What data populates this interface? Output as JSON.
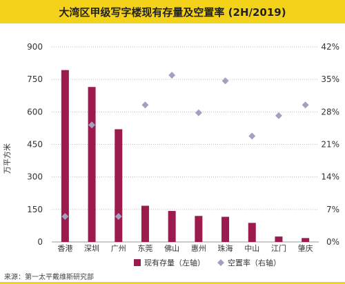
{
  "title": "大湾区甲级写字楼现有存量及空置率 (2H/2019)",
  "source": "来源：第一太平戴维斯研究部",
  "chart_data": {
    "type": "bar",
    "categories": [
      "香港",
      "深圳",
      "广州",
      "东莞",
      "佛山",
      "惠州",
      "珠海",
      "中山",
      "江门",
      "肇庆"
    ],
    "series": [
      {
        "name": "现有存量（左轴）",
        "axis": "left",
        "mark": "bar",
        "color": "#9b1b4e",
        "values": [
          793,
          715,
          520,
          167,
          143,
          120,
          116,
          88,
          25,
          18
        ]
      },
      {
        "name": "空置率（右轴）",
        "axis": "right",
        "mark": "diamond",
        "color": "#a3a0c0",
        "values": [
          5.5,
          25.2,
          5.5,
          29.5,
          35.9,
          27.8,
          34.7,
          22.8,
          27.2,
          29.5
        ]
      }
    ],
    "ylabel": "万平方米",
    "ylim": [
      0,
      900
    ],
    "yticks": [
      0,
      150,
      300,
      450,
      600,
      750,
      900
    ],
    "y2lim": [
      0,
      42
    ],
    "y2ticks": [
      "0%",
      "7%",
      "14%",
      "21%",
      "28%",
      "35%",
      "42%"
    ],
    "grid": "horizontal dotted",
    "legend_position": "bottom"
  }
}
